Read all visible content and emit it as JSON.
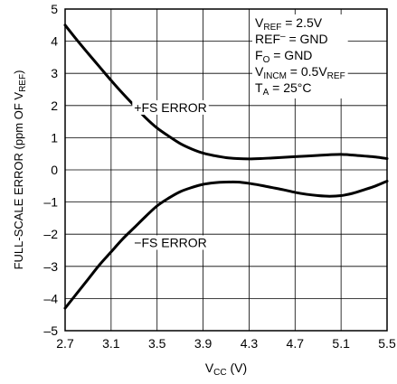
{
  "chart_data": {
    "type": "line",
    "title": "",
    "xlabel": {
      "main": "V",
      "sub": "CC",
      "suffix": " (V)"
    },
    "ylabel": {
      "prefix": "FULL-SCALE ERROR (ppm OF V",
      "sub": "REF",
      "suffix": ")"
    },
    "xlim": [
      2.7,
      5.5
    ],
    "ylim": [
      -5,
      5
    ],
    "x_ticks": [
      "2.7",
      "3.1",
      "3.5",
      "3.9",
      "4.3",
      "4.7",
      "5.1",
      "5.5"
    ],
    "y_ticks": [
      "5",
      "4",
      "3",
      "2",
      "1",
      "0",
      "-1",
      "-2",
      "-3",
      "-4",
      "-5"
    ],
    "grid": true,
    "series": [
      {
        "name": "+FS ERROR",
        "x": [
          2.7,
          2.8,
          2.9,
          3.0,
          3.1,
          3.2,
          3.3,
          3.4,
          3.5,
          3.6,
          3.7,
          3.8,
          3.9,
          4.0,
          4.1,
          4.2,
          4.3,
          4.4,
          4.5,
          4.6,
          4.7,
          4.8,
          4.9,
          5.0,
          5.1,
          5.2,
          5.3,
          5.4,
          5.5
        ],
        "y": [
          4.5,
          4.05,
          3.62,
          3.2,
          2.78,
          2.38,
          2.0,
          1.62,
          1.3,
          1.05,
          0.82,
          0.65,
          0.52,
          0.44,
          0.38,
          0.35,
          0.34,
          0.35,
          0.37,
          0.39,
          0.41,
          0.43,
          0.45,
          0.47,
          0.48,
          0.46,
          0.43,
          0.4,
          0.35
        ]
      },
      {
        "name": "−FS ERROR",
        "x": [
          2.7,
          2.8,
          2.9,
          3.0,
          3.1,
          3.2,
          3.3,
          3.4,
          3.5,
          3.6,
          3.7,
          3.8,
          3.9,
          4.0,
          4.1,
          4.2,
          4.3,
          4.4,
          4.5,
          4.6,
          4.7,
          4.8,
          4.9,
          5.0,
          5.1,
          5.2,
          5.3,
          5.4,
          5.5
        ],
        "y": [
          -4.3,
          -3.85,
          -3.4,
          -2.95,
          -2.55,
          -2.15,
          -1.8,
          -1.45,
          -1.12,
          -0.88,
          -0.68,
          -0.55,
          -0.45,
          -0.4,
          -0.38,
          -0.38,
          -0.42,
          -0.48,
          -0.55,
          -0.62,
          -0.7,
          -0.76,
          -0.8,
          -0.82,
          -0.8,
          -0.73,
          -0.62,
          -0.5,
          -0.35
        ]
      }
    ],
    "series_labels": [
      {
        "text": "+FS ERROR",
        "x": 3.3,
        "y": 1.8
      },
      {
        "text": "−FS ERROR",
        "x": 3.3,
        "y": -2.4
      }
    ],
    "annotation_lines": [
      [
        {
          "t": "V"
        },
        {
          "t": "REF",
          "s": "sub"
        },
        {
          "t": " = 2.5V"
        }
      ],
      [
        {
          "t": "REF"
        },
        {
          "t": "–",
          "s": "sup"
        },
        {
          "t": " = GND"
        }
      ],
      [
        {
          "t": "F"
        },
        {
          "t": "O",
          "s": "sub"
        },
        {
          "t": " = GND"
        }
      ],
      [
        {
          "t": "V"
        },
        {
          "t": "INCM",
          "s": "sub"
        },
        {
          "t": " = 0.5V"
        },
        {
          "t": "REF",
          "s": "sub"
        }
      ],
      [
        {
          "t": "T"
        },
        {
          "t": "A",
          "s": "sub"
        },
        {
          "t": " = 25°C"
        }
      ]
    ]
  }
}
